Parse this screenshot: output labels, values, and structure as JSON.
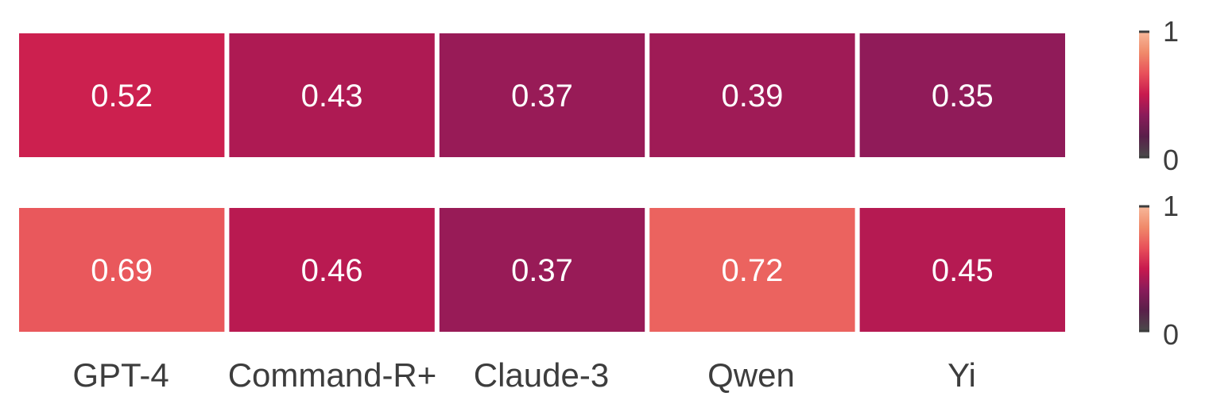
{
  "chart_data": [
    {
      "type": "heatmap",
      "categories": [
        "GPT-4",
        "Command-R+",
        "Claude-3",
        "Qwen",
        "Yi"
      ],
      "values": [
        0.52,
        0.43,
        0.37,
        0.39,
        0.35
      ],
      "value_labels": [
        "0.52",
        "0.43",
        "0.37",
        "0.39",
        "0.35"
      ],
      "colorbar": {
        "min": 0,
        "max": 1,
        "tick_labels": [
          "1",
          "0"
        ]
      }
    },
    {
      "type": "heatmap",
      "categories": [
        "GPT-4",
        "Command-R+",
        "Claude-3",
        "Qwen",
        "Yi"
      ],
      "values": [
        0.69,
        0.46,
        0.37,
        0.72,
        0.45
      ],
      "value_labels": [
        "0.69",
        "0.46",
        "0.37",
        "0.72",
        "0.45"
      ],
      "colorbar": {
        "min": 0,
        "max": 1,
        "tick_labels": [
          "1",
          "0"
        ]
      }
    }
  ],
  "colormap": {
    "name": "rocket",
    "stops": [
      "#4a4a4a",
      "#5a1f4a",
      "#8a1b5a",
      "#c81a4e",
      "#e8505a",
      "#f08a6a",
      "#f7b89a"
    ]
  },
  "x_tick_labels": [
    "GPT-4",
    "Command-R+",
    "Claude-3",
    "Qwen",
    "Yi"
  ]
}
